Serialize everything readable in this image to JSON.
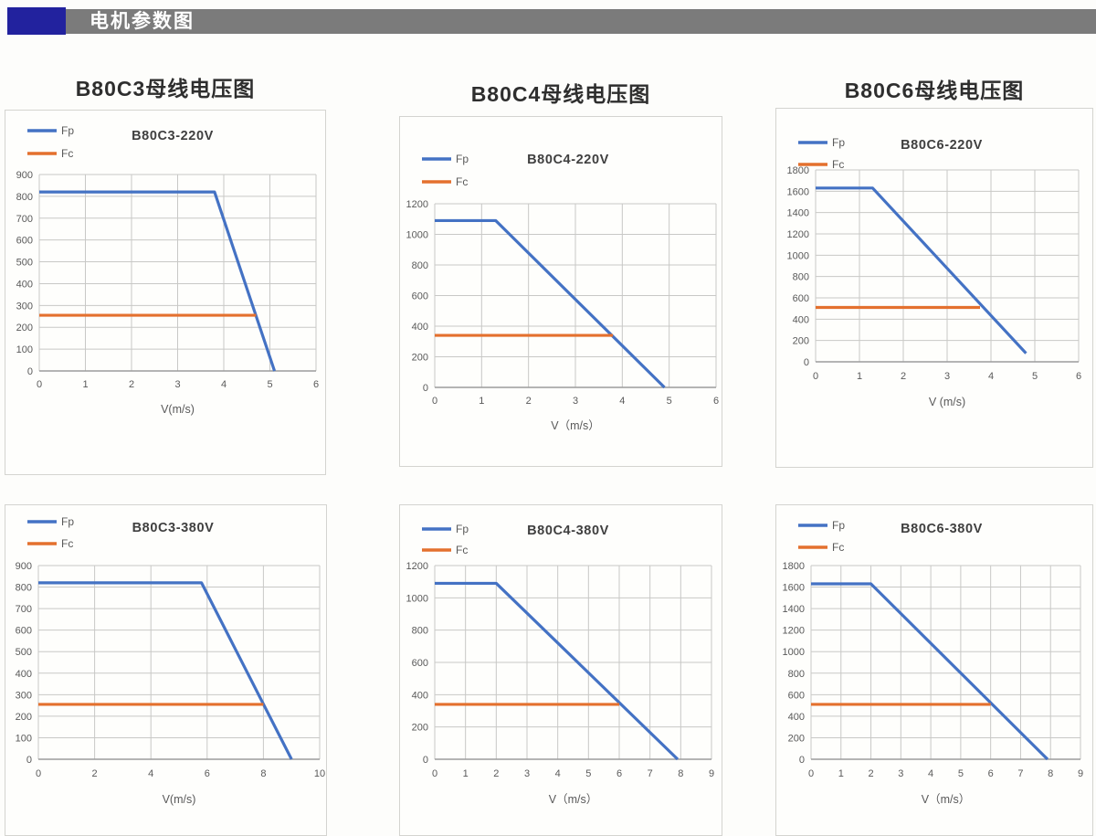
{
  "header": {
    "title": "电机参数图",
    "accent_color": "#22229E",
    "bar_color": "#7B7B7B"
  },
  "section_titles": [
    {
      "label": "B80C3母线电压图"
    },
    {
      "label": "B80C4母线电压图"
    },
    {
      "label": "B80C6母线电压图"
    }
  ],
  "colors": {
    "fp_line": "#4472C4",
    "fc_line": "#E4702E",
    "grid": "#C8C8C6",
    "axis": "#9C9C9C",
    "panel_border": "#D4D4D0",
    "tick_text": "#595959",
    "chart_title_text": "#3F3F3F"
  },
  "chart_data": [
    {
      "type": "line",
      "title": "B80C3-220V",
      "xlabel": "V(m/s)",
      "xlim": [
        0,
        6
      ],
      "xticks": [
        0,
        1,
        2,
        3,
        4,
        5,
        6
      ],
      "ylim": [
        0,
        900
      ],
      "yticks": [
        0,
        100,
        200,
        300,
        400,
        500,
        600,
        700,
        800,
        900
      ],
      "grid": true,
      "legend_position": "top-left",
      "series": [
        {
          "name": "Fp",
          "color": "#4472C4",
          "points": [
            [
              0,
              820
            ],
            [
              3.8,
              820
            ],
            [
              5.1,
              0
            ]
          ]
        },
        {
          "name": "Fc",
          "color": "#E4702E",
          "points": [
            [
              0,
              255
            ],
            [
              4.7,
              255
            ]
          ]
        }
      ]
    },
    {
      "type": "line",
      "title": "B80C4-220V",
      "xlabel": "V（m/s）",
      "xlim": [
        0,
        6
      ],
      "xticks": [
        0,
        1,
        2,
        3,
        4,
        5,
        6
      ],
      "ylim": [
        0,
        1200
      ],
      "yticks": [
        0,
        200,
        400,
        600,
        800,
        1000,
        1200
      ],
      "grid": true,
      "legend_position": "top-left",
      "series": [
        {
          "name": "Fp",
          "color": "#4472C4",
          "points": [
            [
              0,
              1090
            ],
            [
              1.3,
              1090
            ],
            [
              4.9,
              0
            ]
          ]
        },
        {
          "name": "Fc",
          "color": "#E4702E",
          "points": [
            [
              0,
              340
            ],
            [
              3.8,
              340
            ]
          ]
        }
      ]
    },
    {
      "type": "line",
      "title": "B80C6-220V",
      "xlabel": "V (m/s)",
      "xlim": [
        0,
        6
      ],
      "xticks": [
        0,
        1,
        2,
        3,
        4,
        5,
        6
      ],
      "ylim": [
        0,
        1800
      ],
      "yticks": [
        0,
        200,
        400,
        600,
        800,
        1000,
        1200,
        1400,
        1600,
        1800
      ],
      "grid": true,
      "legend_position": "top-left",
      "series": [
        {
          "name": "Fp",
          "color": "#4472C4",
          "points": [
            [
              0,
              1630
            ],
            [
              1.3,
              1630
            ],
            [
              4.8,
              80
            ]
          ]
        },
        {
          "name": "Fc",
          "color": "#E4702E",
          "points": [
            [
              0,
              510
            ],
            [
              3.75,
              510
            ]
          ]
        }
      ]
    },
    {
      "type": "line",
      "title": "B80C3-380V",
      "xlabel": "V(m/s)",
      "xlim": [
        0,
        10
      ],
      "xticks": [
        0,
        2,
        4,
        6,
        8,
        10
      ],
      "ylim": [
        0,
        900
      ],
      "yticks": [
        0,
        100,
        200,
        300,
        400,
        500,
        600,
        700,
        800,
        900
      ],
      "grid": true,
      "legend_position": "top-left",
      "series": [
        {
          "name": "Fp",
          "color": "#4472C4",
          "points": [
            [
              0,
              820
            ],
            [
              5.8,
              820
            ],
            [
              9.0,
              0
            ]
          ]
        },
        {
          "name": "Fc",
          "color": "#E4702E",
          "points": [
            [
              0,
              255
            ],
            [
              8.0,
              255
            ]
          ]
        }
      ]
    },
    {
      "type": "line",
      "title": "B80C4-380V",
      "xlabel": "V（m/s）",
      "xlim": [
        0,
        9
      ],
      "xticks": [
        0,
        1,
        2,
        3,
        4,
        5,
        6,
        7,
        8,
        9
      ],
      "ylim": [
        0,
        1200
      ],
      "yticks": [
        0,
        200,
        400,
        600,
        800,
        1000,
        1200
      ],
      "grid": true,
      "legend_position": "top-left",
      "series": [
        {
          "name": "Fp",
          "color": "#4472C4",
          "points": [
            [
              0,
              1090
            ],
            [
              2.0,
              1090
            ],
            [
              7.9,
              0
            ]
          ]
        },
        {
          "name": "Fc",
          "color": "#E4702E",
          "points": [
            [
              0,
              340
            ],
            [
              6.0,
              340
            ]
          ]
        }
      ]
    },
    {
      "type": "line",
      "title": "B80C6-380V",
      "xlabel": "V（m/s）",
      "xlim": [
        0,
        9
      ],
      "xticks": [
        0,
        1,
        2,
        3,
        4,
        5,
        6,
        7,
        8,
        9
      ],
      "ylim": [
        0,
        1800
      ],
      "yticks": [
        0,
        200,
        400,
        600,
        800,
        1000,
        1200,
        1400,
        1600,
        1800
      ],
      "grid": true,
      "legend_position": "top-left",
      "series": [
        {
          "name": "Fp",
          "color": "#4472C4",
          "points": [
            [
              0,
              1630
            ],
            [
              2.0,
              1630
            ],
            [
              7.9,
              0
            ]
          ]
        },
        {
          "name": "Fc",
          "color": "#E4702E",
          "points": [
            [
              0,
              510
            ],
            [
              6.0,
              510
            ]
          ]
        }
      ]
    }
  ],
  "legend": {
    "fp_label": "Fp",
    "fc_label": "Fc"
  }
}
